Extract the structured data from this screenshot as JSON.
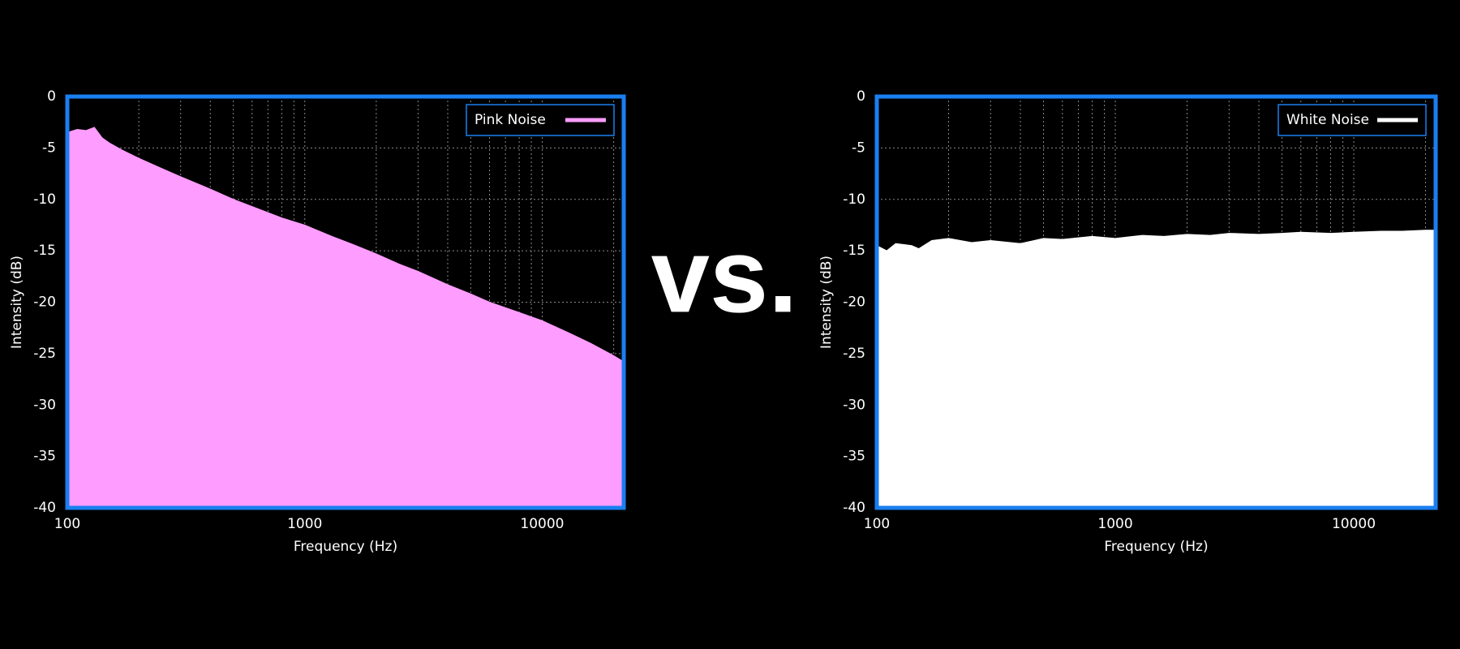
{
  "separator_text": "vs.",
  "chart_data": [
    {
      "type": "area",
      "xlabel": "Frequency (Hz)",
      "ylabel": "Intensity (dB)",
      "log_x": true,
      "grid": true,
      "legend": "upper right",
      "x": [
        100,
        110,
        120,
        130,
        140,
        150,
        170,
        200,
        250,
        300,
        400,
        500,
        600,
        800,
        1000,
        1300,
        1600,
        2000,
        2500,
        3000,
        4000,
        5000,
        6000,
        8000,
        10000,
        13000,
        16000,
        20000,
        22050
      ],
      "series": [
        {
          "name": "Pink Noise",
          "color": "#ff9cff",
          "values": [
            -3.5,
            -3.2,
            -3.3,
            -3.0,
            -4.0,
            -4.5,
            -5.2,
            -6.0,
            -7.0,
            -7.8,
            -9.0,
            -10.0,
            -10.7,
            -11.8,
            -12.5,
            -13.6,
            -14.4,
            -15.3,
            -16.3,
            -17.0,
            -18.3,
            -19.2,
            -20.0,
            -21.0,
            -21.8,
            -23.0,
            -24.0,
            -25.2,
            -25.8
          ]
        }
      ],
      "xlim": [
        100,
        22050
      ],
      "ylim": [
        -40,
        0
      ],
      "xticks": [
        100,
        1000,
        10000
      ],
      "x_minor_grid": [
        200,
        300,
        400,
        500,
        600,
        700,
        800,
        900,
        2000,
        3000,
        4000,
        5000,
        6000,
        7000,
        8000,
        9000,
        20000
      ],
      "yticks": [
        0,
        -5,
        -10,
        -15,
        -20,
        -25,
        -30,
        -35,
        -40
      ]
    },
    {
      "type": "area",
      "xlabel": "Frequency (Hz)",
      "ylabel": "Intensity (dB)",
      "log_x": true,
      "grid": true,
      "legend": "upper right",
      "x": [
        100,
        110,
        120,
        130,
        140,
        150,
        170,
        200,
        250,
        300,
        400,
        500,
        600,
        800,
        1000,
        1300,
        1600,
        2000,
        2500,
        3000,
        4000,
        5000,
        6000,
        8000,
        10000,
        13000,
        16000,
        20000,
        22050
      ],
      "series": [
        {
          "name": "White Noise",
          "color": "#ffffff",
          "values": [
            -14.5,
            -15.0,
            -14.3,
            -14.4,
            -14.5,
            -14.8,
            -14.0,
            -13.8,
            -14.2,
            -14.0,
            -14.3,
            -13.8,
            -13.9,
            -13.6,
            -13.8,
            -13.5,
            -13.6,
            -13.4,
            -13.5,
            -13.3,
            -13.4,
            -13.3,
            -13.2,
            -13.3,
            -13.2,
            -13.1,
            -13.1,
            -13.0,
            -13.0
          ]
        }
      ],
      "xlim": [
        100,
        22050
      ],
      "ylim": [
        -40,
        0
      ],
      "xticks": [
        100,
        1000,
        10000
      ],
      "x_minor_grid": [
        200,
        300,
        400,
        500,
        600,
        700,
        800,
        900,
        2000,
        3000,
        4000,
        5000,
        6000,
        7000,
        8000,
        9000,
        20000
      ],
      "yticks": [
        0,
        -5,
        -10,
        -15,
        -20,
        -25,
        -30,
        -35,
        -40
      ]
    }
  ]
}
